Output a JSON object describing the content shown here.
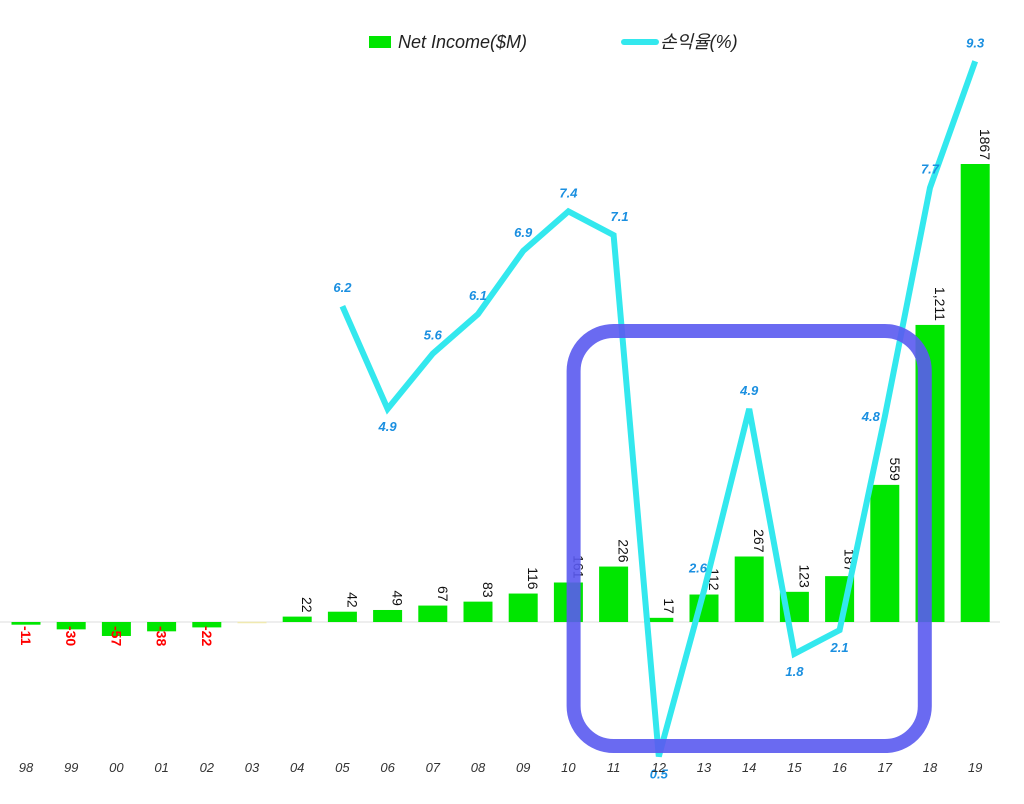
{
  "legend": {
    "bar_label": "Net Income($M)",
    "line_label": "손익율(%)"
  },
  "colors": {
    "bar": "#00e600",
    "line": "#33e8ee",
    "highlight_box": "#5a5af0",
    "negative_label": "#ff0000",
    "margin_label": "#1a8fe0"
  },
  "chart_data": {
    "type": "bar",
    "categories": [
      "98",
      "99",
      "00",
      "01",
      "02",
      "03",
      "04",
      "05",
      "06",
      "07",
      "08",
      "09",
      "10",
      "11",
      "12",
      "13",
      "14",
      "15",
      "16",
      "17",
      "18",
      "19"
    ],
    "series": [
      {
        "name": "Net Income($M)",
        "type": "bar",
        "values": [
          -11,
          -30,
          -57,
          -38,
          -22,
          1,
          22,
          42,
          49,
          67,
          83,
          116,
          161,
          226,
          17,
          112,
          267,
          123,
          187,
          559,
          1211,
          1867
        ],
        "labels": [
          "-11",
          "-30",
          "-57",
          "-38",
          "-22",
          "",
          "22",
          "42",
          "49",
          "67",
          "83",
          "116",
          "161",
          "226",
          "17",
          "112",
          "267",
          "123",
          "187",
          "559",
          "1,211",
          "1867"
        ]
      },
      {
        "name": "손익율(%)",
        "type": "line",
        "values": [
          null,
          null,
          null,
          null,
          null,
          null,
          null,
          6.2,
          4.9,
          5.6,
          6.1,
          6.9,
          7.4,
          7.1,
          0.5,
          2.6,
          4.9,
          1.8,
          2.1,
          4.8,
          7.7,
          9.3
        ],
        "labels": [
          "",
          "",
          "",
          "",
          "",
          "",
          "",
          "6.2",
          "4.9",
          "5.6",
          "6.1",
          "6.9",
          "7.4",
          "7.1",
          "0.5",
          "2.6",
          "4.9",
          "1.8",
          "2.1",
          "4.8",
          "7.7",
          "9.3"
        ]
      }
    ],
    "highlight": {
      "from": "11",
      "to": "17"
    },
    "grid": false,
    "legend_position": "top"
  }
}
